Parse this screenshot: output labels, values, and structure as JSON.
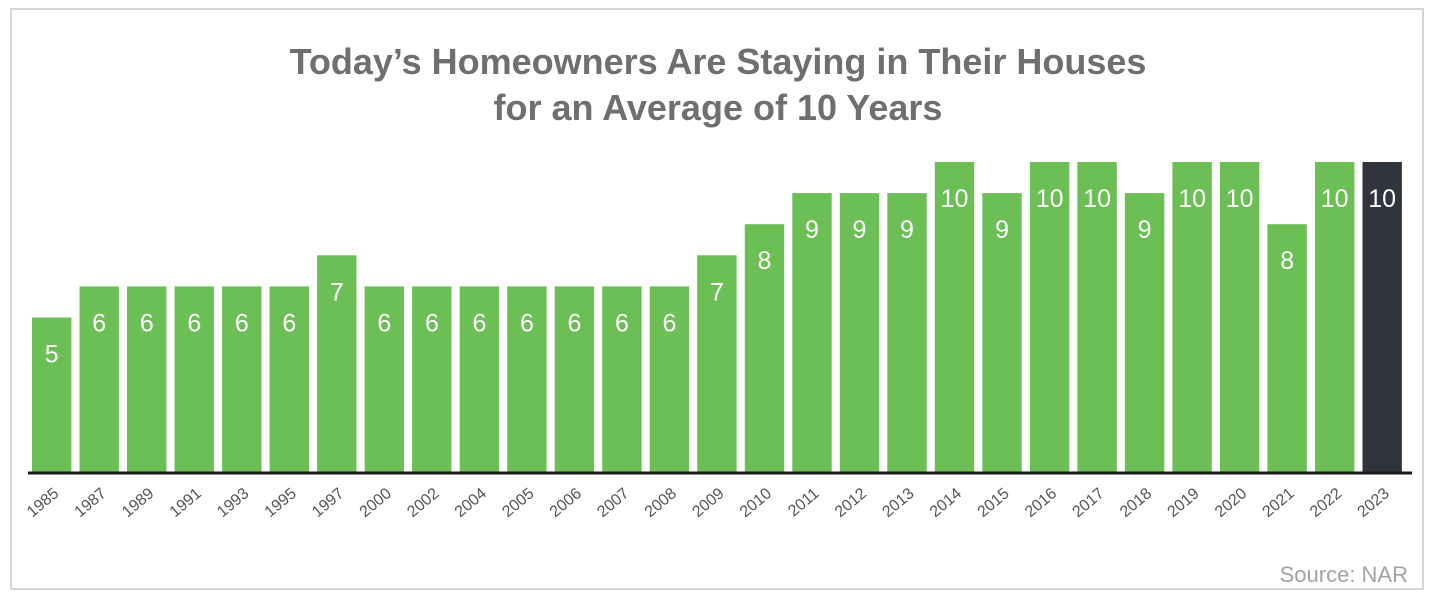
{
  "chart_data": {
    "type": "bar",
    "title_lines": [
      "Today’s Homeowners Are Staying in Their Houses",
      "for an Average of 10 Years"
    ],
    "categories": [
      "1985",
      "1987",
      "1989",
      "1991",
      "1993",
      "1995",
      "1997",
      "2000",
      "2002",
      "2004",
      "2005",
      "2006",
      "2007",
      "2008",
      "2009",
      "2010",
      "2011",
      "2012",
      "2013",
      "2014",
      "2015",
      "2016",
      "2017",
      "2018",
      "2019",
      "2020",
      "2021",
      "2022",
      "2023"
    ],
    "values": [
      5,
      6,
      6,
      6,
      6,
      6,
      7,
      6,
      6,
      6,
      6,
      6,
      6,
      6,
      7,
      8,
      9,
      9,
      9,
      10,
      9,
      10,
      10,
      9,
      10,
      10,
      8,
      10,
      10
    ],
    "highlight_index": 28,
    "ylim": [
      0,
      10
    ],
    "grid": false,
    "legend": "none",
    "data_labels": true,
    "xlabel": "",
    "ylabel": ""
  },
  "colors": {
    "bar": "#6cbf55",
    "highlight_bar": "#2e353d",
    "axis": "#1a1a1a",
    "title": "#6f6f6f",
    "label_on_bar": "#ffffff",
    "tick_label": "#555555",
    "source": "#a3a3a3"
  },
  "source_note": "Source: NAR"
}
